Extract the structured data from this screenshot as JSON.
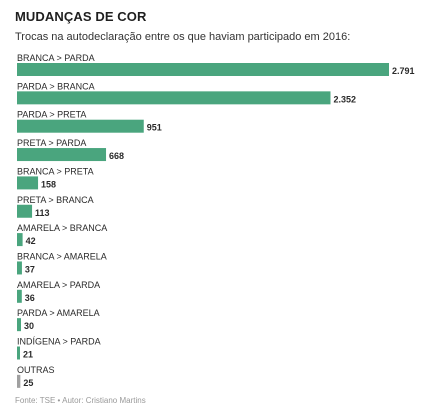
{
  "chart_data": {
    "type": "bar",
    "orientation": "horizontal",
    "title": "MUDANÇAS DE COR",
    "subtitle": "Trocas na autodeclaração entre os que haviam participado em 2016:",
    "categories": [
      "BRANCA > PARDA",
      "PARDA > BRANCA",
      "PARDA > PRETA",
      "PRETA > PARDA",
      "BRANCA > PRETA",
      "PRETA > BRANCA",
      "AMARELA > BRANCA",
      "BRANCA > AMARELA",
      "AMARELA > PARDA",
      "PARDA > AMARELA",
      "INDÍGENA > PARDA",
      "OUTRAS"
    ],
    "values": [
      2791,
      2352,
      951,
      668,
      158,
      113,
      42,
      37,
      36,
      30,
      21,
      25
    ],
    "value_labels": [
      "2.791",
      "2.352",
      "951",
      "668",
      "158",
      "113",
      "42",
      "37",
      "36",
      "30",
      "21",
      "25"
    ],
    "colors": [
      "#4aa57e",
      "#4aa57e",
      "#4aa57e",
      "#4aa57e",
      "#4aa57e",
      "#4aa57e",
      "#4aa57e",
      "#4aa57e",
      "#4aa57e",
      "#4aa57e",
      "#4aa57e",
      "#a0a0a0"
    ],
    "xlim": [
      0,
      2791
    ],
    "grid": false,
    "source": "Fonte: TSE • Autor: Cristiano Martins"
  }
}
